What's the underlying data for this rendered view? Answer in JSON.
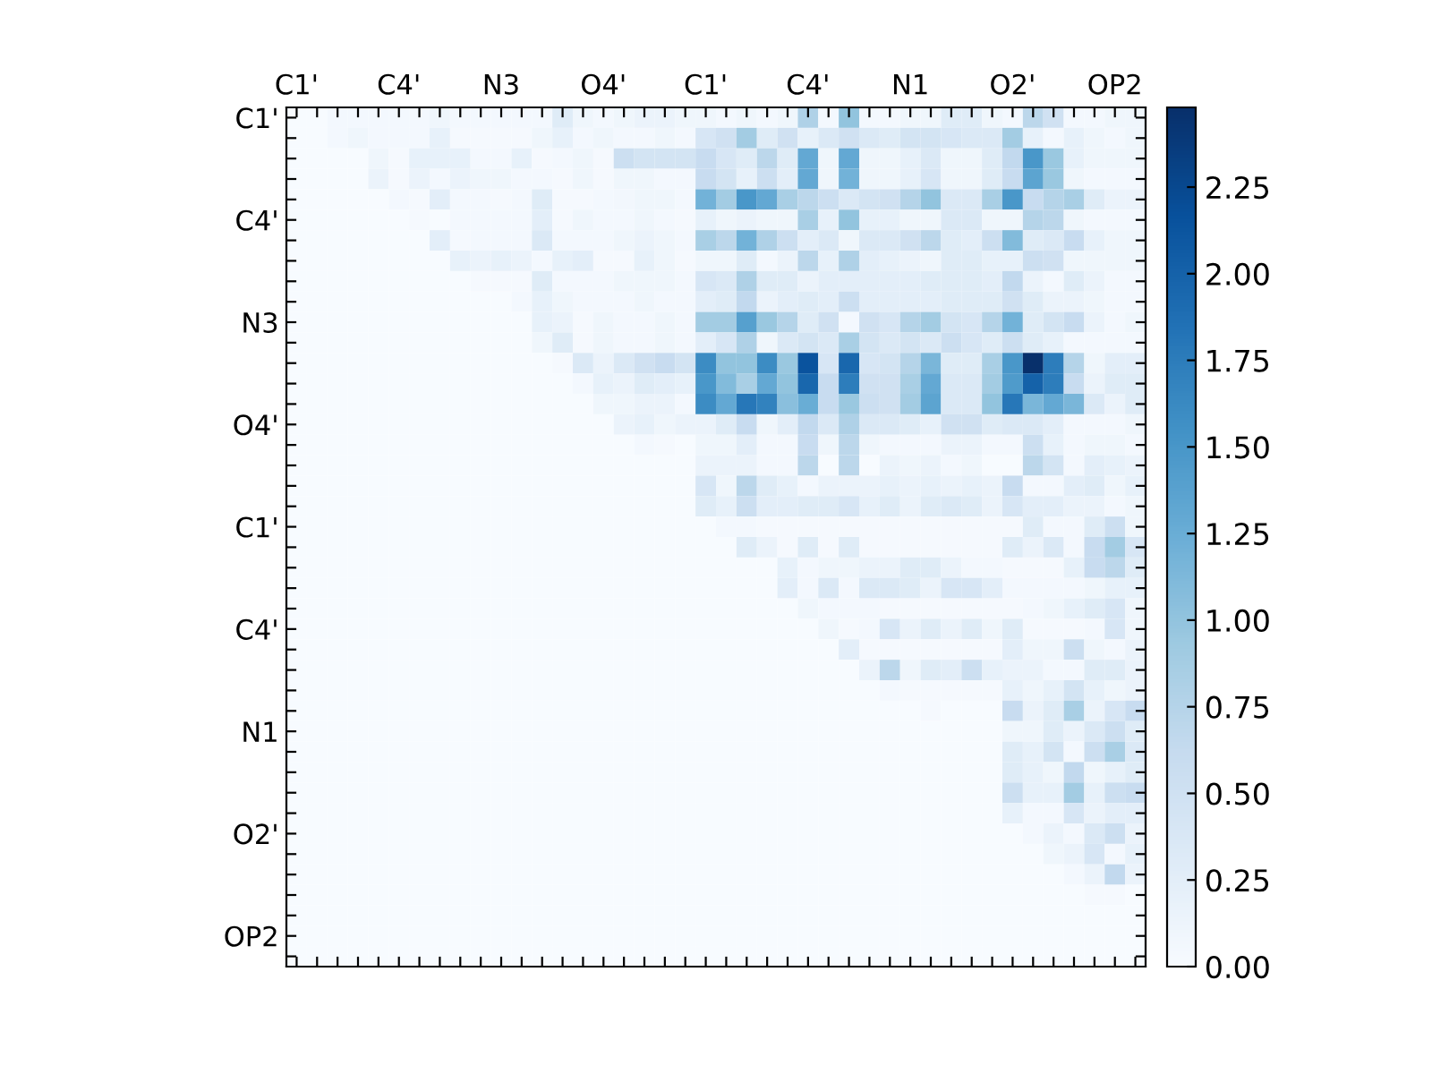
{
  "chart_data": {
    "type": "heatmap",
    "categories": [
      "C1'",
      null,
      null,
      null,
      null,
      "C4'",
      null,
      null,
      null,
      null,
      "N3",
      null,
      null,
      null,
      null,
      "O4'",
      null,
      null,
      null,
      null,
      "C1'",
      null,
      null,
      null,
      null,
      "C4'",
      null,
      null,
      null,
      null,
      "N1",
      null,
      null,
      null,
      null,
      "O2'",
      null,
      null,
      null,
      null,
      "OP2",
      null
    ],
    "y_categories": [
      "C1'",
      null,
      null,
      null,
      null,
      "C4'",
      null,
      null,
      null,
      null,
      "N3",
      null,
      null,
      null,
      null,
      "O4'",
      null,
      null,
      null,
      null,
      "C1'",
      null,
      null,
      null,
      null,
      "C4'",
      null,
      null,
      null,
      null,
      "N1",
      null,
      null,
      null,
      null,
      "O2'",
      null,
      null,
      null,
      null,
      "OP2",
      null
    ],
    "cells": [
      [
        0,
        0,
        0.05,
        0.05,
        0.05,
        0.05,
        0.05,
        0.1,
        0.05,
        0.05,
        0.05,
        0.05,
        0.05,
        0.3,
        0.1,
        0.05,
        0.1,
        0.15,
        0.15,
        0.1,
        0.1,
        0.05,
        0.1,
        0.05,
        0.1,
        0.8,
        0.05,
        1.0,
        0.05,
        0.05,
        0.1,
        0.1,
        0.3,
        0.3,
        0.1,
        0.05,
        0.7,
        0.5,
        0.05,
        0.05,
        0.1,
        0.1
      ],
      [
        0,
        0,
        0.05,
        0.1,
        0.05,
        0.05,
        0.05,
        0.2,
        0.03,
        0.03,
        0.03,
        0.03,
        0.1,
        0.2,
        0.05,
        0.1,
        0.05,
        0.05,
        0.1,
        0.05,
        0.4,
        0.5,
        0.9,
        0.3,
        0.5,
        0.2,
        0.35,
        0.5,
        0.35,
        0.3,
        0.45,
        0.45,
        0.4,
        0.35,
        0.35,
        0.9,
        0.2,
        0.05,
        0.2,
        0.1,
        0.05,
        0.1
      ],
      [
        0,
        0,
        0,
        0,
        0.1,
        0.03,
        0.2,
        0.2,
        0.2,
        0.05,
        0.05,
        0.2,
        0.03,
        0.05,
        0.1,
        0.03,
        0.55,
        0.45,
        0.45,
        0.45,
        0.6,
        0.4,
        0.3,
        0.7,
        0.3,
        1.3,
        0.1,
        1.3,
        0.1,
        0.1,
        0.2,
        0.35,
        0.1,
        0.1,
        0.3,
        0.65,
        1.5,
        0.95,
        0.2,
        0.1,
        0.1,
        0.1
      ],
      [
        0,
        0,
        0,
        0,
        0.15,
        0.03,
        0.15,
        0.05,
        0.15,
        0.1,
        0.1,
        0.05,
        0.05,
        0.03,
        0.1,
        0.03,
        0.1,
        0.1,
        0.05,
        0.05,
        0.6,
        0.45,
        0.2,
        0.55,
        0.25,
        1.3,
        0.1,
        1.2,
        0.1,
        0.1,
        0.2,
        0.4,
        0.1,
        0.1,
        0.3,
        0.6,
        1.35,
        0.95,
        0.1,
        0.05,
        0.05,
        0.05
      ],
      [
        0,
        0,
        0,
        0,
        0,
        0.05,
        0.03,
        0.25,
        0.05,
        0.05,
        0.03,
        0.05,
        0.3,
        0.03,
        0.03,
        0.05,
        0.07,
        0.1,
        0.1,
        0.05,
        1.2,
        0.9,
        1.5,
        1.3,
        0.85,
        0.7,
        0.55,
        0.35,
        0.45,
        0.5,
        0.75,
        1.0,
        0.35,
        0.35,
        0.85,
        1.5,
        0.6,
        0.75,
        0.85,
        0.3,
        0.15,
        0.15
      ],
      [
        0,
        0,
        0,
        0,
        0,
        0,
        0.03,
        0,
        0.05,
        0.05,
        0.05,
        0.05,
        0.25,
        0.03,
        0.1,
        0.05,
        0.05,
        0.1,
        0.05,
        0.03,
        0.2,
        0.1,
        0.15,
        0.1,
        0.1,
        0.85,
        0.2,
        1.0,
        0.2,
        0.2,
        0.1,
        0.1,
        0.35,
        0.35,
        0.1,
        0.1,
        0.75,
        0.7,
        0.1,
        0.05,
        0.05,
        0.05
      ],
      [
        0,
        0,
        0,
        0,
        0,
        0,
        0,
        0.25,
        0.03,
        0.05,
        0.05,
        0.05,
        0.35,
        0.05,
        0.05,
        0.05,
        0.1,
        0.15,
        0.1,
        0.05,
        0.85,
        0.7,
        1.2,
        0.8,
        0.55,
        0.25,
        0.35,
        0.1,
        0.35,
        0.35,
        0.5,
        0.7,
        0.3,
        0.25,
        0.55,
        1.1,
        0.3,
        0.35,
        0.6,
        0.2,
        0.1,
        0.1
      ],
      [
        0,
        0,
        0,
        0,
        0,
        0,
        0,
        0,
        0.2,
        0.15,
        0.2,
        0.15,
        0.05,
        0.2,
        0.25,
        0.03,
        0.03,
        0.2,
        0.1,
        0.03,
        0.1,
        0.1,
        0.3,
        0.05,
        0.15,
        0.7,
        0.2,
        0.8,
        0.25,
        0.2,
        0.15,
        0.1,
        0.3,
        0.3,
        0.2,
        0.2,
        0.55,
        0.5,
        0.1,
        0.1,
        0.1,
        0.1
      ],
      [
        0,
        0,
        0,
        0,
        0,
        0,
        0,
        0,
        0,
        0.03,
        0.03,
        0.03,
        0.3,
        0.05,
        0.05,
        0.05,
        0.1,
        0.1,
        0.1,
        0.05,
        0.4,
        0.35,
        0.8,
        0.3,
        0.3,
        0.15,
        0.25,
        0.25,
        0.25,
        0.25,
        0.25,
        0.3,
        0.3,
        0.3,
        0.25,
        0.65,
        0.15,
        0.05,
        0.3,
        0.15,
        0.05,
        0.05
      ],
      [
        0,
        0,
        0,
        0,
        0,
        0,
        0,
        0,
        0,
        0,
        0,
        0.05,
        0.2,
        0.1,
        0.05,
        0.05,
        0.05,
        0.1,
        0.05,
        0.05,
        0.25,
        0.3,
        0.65,
        0.15,
        0.25,
        0.3,
        0.25,
        0.55,
        0.25,
        0.25,
        0.25,
        0.25,
        0.3,
        0.3,
        0.3,
        0.5,
        0.3,
        0.15,
        0.15,
        0.1,
        0.05,
        0.05
      ],
      [
        0,
        0,
        0,
        0,
        0,
        0,
        0,
        0,
        0,
        0,
        0,
        0,
        0.2,
        0.15,
        0.03,
        0.1,
        0.05,
        0.05,
        0.1,
        0.05,
        0.9,
        0.9,
        1.4,
        0.95,
        0.75,
        0.3,
        0.5,
        0.05,
        0.5,
        0.4,
        0.75,
        0.9,
        0.45,
        0.4,
        0.75,
        1.2,
        0.3,
        0.45,
        0.6,
        0.15,
        0.05,
        0.1
      ],
      [
        0,
        0,
        0,
        0,
        0,
        0,
        0,
        0,
        0,
        0,
        0,
        0,
        0.1,
        0.3,
        0.03,
        0.1,
        0.05,
        0.05,
        0.1,
        0.05,
        0.25,
        0.4,
        0.8,
        0.1,
        0.35,
        0.45,
        0.35,
        0.85,
        0.45,
        0.35,
        0.45,
        0.35,
        0.55,
        0.4,
        0.3,
        0.55,
        0.3,
        0.2,
        0.05,
        0.05,
        0.05,
        0.05
      ],
      [
        0,
        0,
        0,
        0,
        0,
        0,
        0,
        0,
        0,
        0,
        0,
        0,
        0,
        0.03,
        0.35,
        0.15,
        0.35,
        0.5,
        0.6,
        0.45,
        1.6,
        1.0,
        1.0,
        1.6,
        0.95,
        2.15,
        0.4,
        1.95,
        0.4,
        0.45,
        0.75,
        1.15,
        0.3,
        0.3,
        0.85,
        1.5,
        2.48,
        1.75,
        0.75,
        0.1,
        0.25,
        0.25
      ],
      [
        0,
        0,
        0,
        0,
        0,
        0,
        0,
        0,
        0,
        0,
        0,
        0,
        0,
        0,
        0.05,
        0.2,
        0.15,
        0.3,
        0.25,
        0.2,
        1.5,
        1.1,
        0.85,
        1.3,
        1.0,
        1.95,
        0.6,
        1.75,
        0.5,
        0.5,
        0.85,
        1.3,
        0.35,
        0.35,
        0.9,
        1.45,
        2.0,
        1.75,
        0.6,
        0.15,
        0.3,
        0.3
      ],
      [
        0,
        0,
        0,
        0,
        0,
        0,
        0,
        0,
        0,
        0,
        0,
        0,
        0,
        0,
        0,
        0.1,
        0.1,
        0.15,
        0.15,
        0.05,
        1.6,
        1.3,
        1.8,
        1.7,
        1.05,
        1.25,
        0.6,
        0.95,
        0.55,
        0.5,
        0.9,
        1.35,
        0.35,
        0.35,
        1.0,
        1.8,
        1.15,
        1.3,
        1.15,
        0.35,
        0.15,
        0.3
      ],
      [
        0,
        0,
        0,
        0,
        0,
        0,
        0,
        0,
        0,
        0,
        0,
        0,
        0,
        0,
        0,
        0,
        0.15,
        0.2,
        0.1,
        0.15,
        0.15,
        0.3,
        0.6,
        0.1,
        0.25,
        0.65,
        0.35,
        0.8,
        0.35,
        0.35,
        0.3,
        0.2,
        0.5,
        0.5,
        0.3,
        0.35,
        0.35,
        0.25,
        0.05,
        0.05,
        0.05,
        0.1
      ],
      [
        0,
        0,
        0,
        0,
        0,
        0,
        0,
        0,
        0,
        0,
        0,
        0,
        0,
        0,
        0,
        0,
        0,
        0.05,
        0.03,
        0,
        0.1,
        0.1,
        0.25,
        0.05,
        0.05,
        0.6,
        0.1,
        0.7,
        0.1,
        0.05,
        0.05,
        0.05,
        0.15,
        0.15,
        0.05,
        0.05,
        0.55,
        0.2,
        0.05,
        0.1,
        0.1,
        0.05
      ],
      [
        0,
        0,
        0,
        0,
        0,
        0,
        0,
        0,
        0,
        0,
        0,
        0,
        0,
        0,
        0,
        0,
        0,
        0,
        0,
        0,
        0.15,
        0.15,
        0.15,
        0.05,
        0.05,
        0.7,
        0,
        0.7,
        0,
        0.15,
        0.1,
        0.15,
        0.05,
        0.1,
        0,
        0,
        0.7,
        0.45,
        0.05,
        0.25,
        0.2,
        0.15
      ],
      [
        0,
        0,
        0,
        0,
        0,
        0,
        0,
        0,
        0,
        0,
        0,
        0,
        0,
        0,
        0,
        0,
        0,
        0,
        0,
        0,
        0.4,
        0.1,
        0.7,
        0.3,
        0.2,
        0.05,
        0.15,
        0.15,
        0.15,
        0.2,
        0.15,
        0.2,
        0.15,
        0.2,
        0.15,
        0.6,
        0.05,
        0.05,
        0.25,
        0.3,
        0.1,
        0.2
      ],
      [
        0,
        0,
        0,
        0,
        0,
        0,
        0,
        0,
        0,
        0,
        0,
        0,
        0,
        0,
        0,
        0,
        0,
        0,
        0,
        0,
        0.3,
        0.2,
        0.55,
        0.25,
        0.25,
        0.3,
        0.3,
        0.4,
        0.2,
        0.3,
        0.15,
        0.3,
        0.35,
        0.3,
        0.15,
        0.4,
        0.25,
        0.25,
        0.15,
        0.15,
        0.05,
        0.1
      ],
      [
        0,
        0,
        0,
        0,
        0,
        0,
        0,
        0,
        0,
        0,
        0,
        0,
        0,
        0,
        0,
        0,
        0,
        0,
        0,
        0,
        0,
        0.05,
        0.05,
        0.03,
        0.03,
        0.03,
        0.03,
        0.03,
        0.03,
        0.03,
        0.03,
        0.03,
        0.03,
        0.03,
        0.03,
        0.03,
        0.3,
        0.05,
        0.05,
        0.3,
        0.55,
        0.1
      ],
      [
        0,
        0,
        0,
        0,
        0,
        0,
        0,
        0,
        0,
        0,
        0,
        0,
        0,
        0,
        0,
        0,
        0,
        0,
        0,
        0,
        0,
        0,
        0.3,
        0.15,
        0.03,
        0.3,
        0.03,
        0.3,
        0.03,
        0.03,
        0.03,
        0.03,
        0.03,
        0.03,
        0.03,
        0.3,
        0.15,
        0.35,
        0.05,
        0.6,
        0.9,
        0.4
      ],
      [
        0,
        0,
        0,
        0,
        0,
        0,
        0,
        0,
        0,
        0,
        0,
        0,
        0,
        0,
        0,
        0,
        0,
        0,
        0,
        0,
        0,
        0,
        0,
        0,
        0.2,
        0.05,
        0.1,
        0.1,
        0.15,
        0.15,
        0.3,
        0.3,
        0.15,
        0.05,
        0.05,
        0.03,
        0.03,
        0.03,
        0.2,
        0.6,
        0.7,
        0.3
      ],
      [
        0,
        0,
        0,
        0,
        0,
        0,
        0,
        0,
        0,
        0,
        0,
        0,
        0,
        0,
        0,
        0,
        0,
        0,
        0,
        0,
        0,
        0,
        0,
        0,
        0.25,
        0.05,
        0.35,
        0.05,
        0.35,
        0.35,
        0.3,
        0.15,
        0.4,
        0.4,
        0.25,
        0.05,
        0.05,
        0.05,
        0.05,
        0.1,
        0.2,
        0.2
      ],
      [
        0,
        0,
        0,
        0,
        0,
        0,
        0,
        0,
        0,
        0,
        0,
        0,
        0,
        0,
        0,
        0,
        0,
        0,
        0,
        0,
        0,
        0,
        0,
        0,
        0,
        0.1,
        0.05,
        0.05,
        0.05,
        0.03,
        0.03,
        0.03,
        0.03,
        0.03,
        0.03,
        0.03,
        0.05,
        0.1,
        0.2,
        0.3,
        0.4,
        0.1
      ],
      [
        0,
        0,
        0,
        0,
        0,
        0,
        0,
        0,
        0,
        0,
        0,
        0,
        0,
        0,
        0,
        0,
        0,
        0,
        0,
        0,
        0,
        0,
        0,
        0,
        0,
        0,
        0.1,
        0.03,
        0.05,
        0.4,
        0.15,
        0.3,
        0.15,
        0.3,
        0.1,
        0.3,
        0.03,
        0.03,
        0.03,
        0.05,
        0.4,
        0.1
      ],
      [
        0,
        0,
        0,
        0,
        0,
        0,
        0,
        0,
        0,
        0,
        0,
        0,
        0,
        0,
        0,
        0,
        0,
        0,
        0,
        0,
        0,
        0,
        0,
        0,
        0,
        0,
        0,
        0.25,
        0.03,
        0.03,
        0.03,
        0.03,
        0.03,
        0.03,
        0.03,
        0.25,
        0.1,
        0.1,
        0.55,
        0.1,
        0.05,
        0.15
      ],
      [
        0,
        0,
        0,
        0,
        0,
        0,
        0,
        0,
        0,
        0,
        0,
        0,
        0,
        0,
        0,
        0,
        0,
        0,
        0,
        0,
        0,
        0,
        0,
        0,
        0,
        0,
        0,
        0,
        0.15,
        0.7,
        0.1,
        0.3,
        0.25,
        0.55,
        0.2,
        0.15,
        0.15,
        0.05,
        0.05,
        0.3,
        0.3,
        0.15
      ],
      [
        0,
        0,
        0,
        0,
        0,
        0,
        0,
        0,
        0,
        0,
        0,
        0,
        0,
        0,
        0,
        0,
        0,
        0,
        0,
        0,
        0,
        0,
        0,
        0,
        0,
        0,
        0,
        0,
        0,
        0.05,
        0.03,
        0.03,
        0.03,
        0.03,
        0.03,
        0.2,
        0.1,
        0.2,
        0.45,
        0.2,
        0.1,
        0.15
      ],
      [
        0,
        0,
        0,
        0,
        0,
        0,
        0,
        0,
        0,
        0,
        0,
        0,
        0,
        0,
        0,
        0,
        0,
        0,
        0,
        0,
        0,
        0,
        0,
        0,
        0,
        0,
        0,
        0,
        0,
        0,
        0,
        0.03,
        0,
        0,
        0,
        0.6,
        0.15,
        0.3,
        0.85,
        0.15,
        0.4,
        0.6
      ],
      [
        0,
        0,
        0,
        0,
        0,
        0,
        0,
        0,
        0,
        0,
        0,
        0,
        0,
        0,
        0,
        0,
        0,
        0,
        0,
        0,
        0,
        0,
        0,
        0,
        0,
        0,
        0,
        0,
        0,
        0,
        0,
        0,
        0,
        0,
        0,
        0.1,
        0.1,
        0.3,
        0.15,
        0.35,
        0.55,
        0.3
      ],
      [
        0,
        0,
        0,
        0,
        0,
        0,
        0,
        0,
        0,
        0,
        0,
        0,
        0,
        0,
        0,
        0,
        0,
        0,
        0,
        0,
        0,
        0,
        0,
        0,
        0,
        0,
        0,
        0,
        0,
        0,
        0,
        0,
        0,
        0,
        0,
        0.3,
        0.2,
        0.45,
        0.05,
        0.55,
        0.85,
        0.35
      ],
      [
        0,
        0,
        0,
        0,
        0,
        0,
        0,
        0,
        0,
        0,
        0,
        0,
        0,
        0,
        0,
        0,
        0,
        0,
        0,
        0,
        0,
        0,
        0,
        0,
        0,
        0,
        0,
        0,
        0,
        0,
        0,
        0,
        0,
        0,
        0,
        0.3,
        0.2,
        0.1,
        0.65,
        0.1,
        0.2,
        0.3
      ],
      [
        0,
        0,
        0,
        0,
        0,
        0,
        0,
        0,
        0,
        0,
        0,
        0,
        0,
        0,
        0,
        0,
        0,
        0,
        0,
        0,
        0,
        0,
        0,
        0,
        0,
        0,
        0,
        0,
        0,
        0,
        0,
        0,
        0,
        0,
        0,
        0.55,
        0.2,
        0.2,
        0.9,
        0.2,
        0.55,
        0.6
      ],
      [
        0,
        0,
        0,
        0,
        0,
        0,
        0,
        0,
        0,
        0,
        0,
        0,
        0,
        0,
        0,
        0,
        0,
        0,
        0,
        0,
        0,
        0,
        0,
        0,
        0,
        0,
        0,
        0,
        0,
        0,
        0,
        0,
        0,
        0,
        0,
        0.2,
        0.05,
        0.05,
        0.4,
        0.15,
        0.25,
        0.25
      ],
      [
        0,
        0,
        0,
        0,
        0,
        0,
        0,
        0,
        0,
        0,
        0,
        0,
        0,
        0,
        0,
        0,
        0,
        0,
        0,
        0,
        0,
        0,
        0,
        0,
        0,
        0,
        0,
        0,
        0,
        0,
        0,
        0,
        0,
        0,
        0,
        0,
        0.05,
        0.15,
        0.05,
        0.35,
        0.55,
        0.15
      ],
      [
        0,
        0,
        0,
        0,
        0,
        0,
        0,
        0,
        0,
        0,
        0,
        0,
        0,
        0,
        0,
        0,
        0,
        0,
        0,
        0,
        0,
        0,
        0,
        0,
        0,
        0,
        0,
        0,
        0,
        0,
        0,
        0,
        0,
        0,
        0,
        0,
        0,
        0.1,
        0.15,
        0.4,
        0.05,
        0.2
      ],
      [
        0,
        0,
        0,
        0,
        0,
        0,
        0,
        0,
        0,
        0,
        0,
        0,
        0,
        0,
        0,
        0,
        0,
        0,
        0,
        0,
        0,
        0,
        0,
        0,
        0,
        0,
        0,
        0,
        0,
        0,
        0,
        0,
        0,
        0,
        0,
        0,
        0,
        0,
        0.05,
        0.15,
        0.65,
        0.15
      ],
      [
        0,
        0,
        0,
        0,
        0,
        0,
        0,
        0,
        0,
        0,
        0,
        0,
        0,
        0,
        0,
        0,
        0,
        0,
        0,
        0,
        0,
        0,
        0,
        0,
        0,
        0,
        0,
        0,
        0,
        0,
        0,
        0,
        0,
        0,
        0,
        0,
        0,
        0,
        0,
        0.03,
        0.03,
        0
      ],
      [
        0,
        0,
        0,
        0,
        0,
        0,
        0,
        0,
        0,
        0,
        0,
        0,
        0,
        0,
        0,
        0,
        0,
        0,
        0,
        0,
        0,
        0,
        0,
        0,
        0,
        0,
        0,
        0,
        0,
        0,
        0,
        0,
        0,
        0,
        0,
        0,
        0,
        0,
        0,
        0,
        0,
        0
      ],
      [
        0,
        0,
        0,
        0,
        0,
        0,
        0,
        0,
        0,
        0,
        0,
        0,
        0,
        0,
        0,
        0,
        0,
        0,
        0,
        0,
        0,
        0,
        0,
        0,
        0,
        0,
        0,
        0,
        0,
        0,
        0,
        0,
        0,
        0,
        0,
        0,
        0,
        0,
        0,
        0,
        0,
        0
      ],
      [
        0,
        0,
        0,
        0,
        0,
        0,
        0,
        0,
        0,
        0,
        0,
        0,
        0,
        0,
        0,
        0,
        0,
        0,
        0,
        0,
        0,
        0,
        0,
        0,
        0,
        0,
        0,
        0,
        0,
        0,
        0,
        0,
        0,
        0,
        0,
        0,
        0,
        0,
        0,
        0,
        0,
        0
      ]
    ],
    "clim": [
      0,
      2.48
    ],
    "cticks": [
      {
        "value": 0,
        "label": "0.00"
      },
      {
        "value": 0.25,
        "label": "0.25"
      },
      {
        "value": 0.5,
        "label": "0.50"
      },
      {
        "value": 0.75,
        "label": "0.75"
      },
      {
        "value": 1,
        "label": "1.00"
      },
      {
        "value": 1.25,
        "label": "1.25"
      },
      {
        "value": 1.5,
        "label": "1.50"
      },
      {
        "value": 1.75,
        "label": "1.75"
      },
      {
        "value": 2,
        "label": "2.00"
      },
      {
        "value": 2.25,
        "label": "2.25"
      }
    ]
  }
}
